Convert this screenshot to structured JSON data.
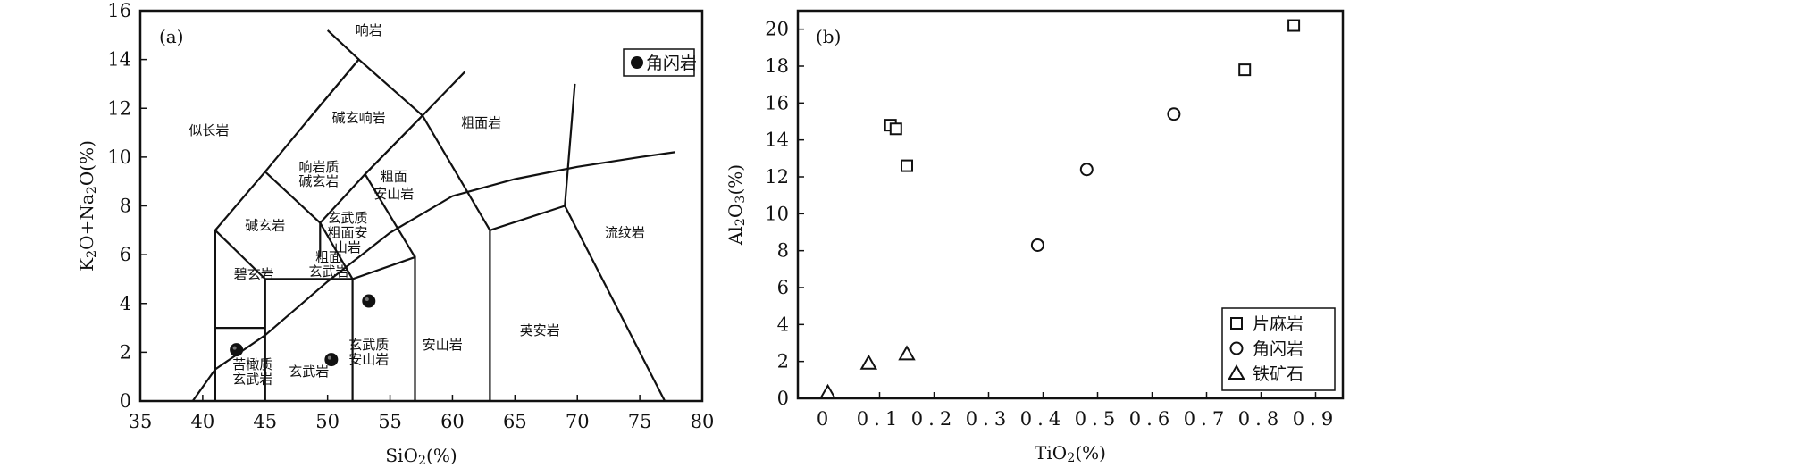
{
  "chart_data": [
    {
      "type": "scatter",
      "panel_label": "(a)",
      "xlabel": "SiO₂(%)",
      "ylabel": "K₂O+Na₂O(%)",
      "xlim": [
        35,
        80
      ],
      "ylim": [
        0,
        16
      ],
      "x_ticks": [
        "35",
        "40",
        "45",
        "50",
        "55",
        "60",
        "65",
        "70",
        "75",
        "80"
      ],
      "y_ticks": [
        "0",
        "2",
        "4",
        "6",
        "8",
        "10",
        "12",
        "14",
        "16"
      ],
      "legend": {
        "placement": "top-right",
        "entries": [
          "角闪岩"
        ]
      },
      "series": [
        {
          "name": "角闪岩",
          "marker": "filled-circle",
          "points": [
            {
              "x": 42.7,
              "y": 2.1
            },
            {
              "x": 50.3,
              "y": 1.7
            },
            {
              "x": 53.3,
              "y": 4.1
            }
          ]
        }
      ],
      "field_labels": [
        {
          "text": "响岩"
        },
        {
          "text": "似长岩"
        },
        {
          "text": "碱玄响岩"
        },
        {
          "text": "粗面岩"
        },
        {
          "text": "响岩质"
        },
        {
          "text": "碱玄岩"
        },
        {
          "text": "粗面"
        },
        {
          "text": "安山岩"
        },
        {
          "text": "碱玄岩"
        },
        {
          "text": "玄武质"
        },
        {
          "text": "粗面安"
        },
        {
          "text": "山岩"
        },
        {
          "text": "流纹岩"
        },
        {
          "text": "碧玄岩"
        },
        {
          "text": "粗面"
        },
        {
          "text": "玄武岩"
        },
        {
          "text": "英安岩"
        },
        {
          "text": "安山岩"
        },
        {
          "text": "玄武质"
        },
        {
          "text": "安山岩"
        },
        {
          "text": "玄武岩"
        },
        {
          "text": "苦橄质"
        },
        {
          "text": "玄武岩"
        }
      ]
    },
    {
      "type": "scatter",
      "panel_label": "(b)",
      "xlabel": "TiO₂(%)",
      "ylabel": "Al₂O₃(%)",
      "xlim": [
        -0.05,
        0.95
      ],
      "ylim": [
        0,
        21
      ],
      "x_ticks": [
        "0",
        "0.1",
        "0.2",
        "0.3",
        "0.4",
        "0.5",
        "0.6",
        "0.7",
        "0.8",
        "0.9"
      ],
      "y_ticks": [
        "0",
        "2",
        "4",
        "6",
        "8",
        "10",
        "12",
        "14",
        "16",
        "18",
        "20"
      ],
      "legend": {
        "placement": "bottom-right",
        "entries": [
          "片麻岩",
          "角闪岩",
          "铁矿石"
        ]
      },
      "series": [
        {
          "name": "片麻岩",
          "marker": "square",
          "points": [
            {
              "x": 0.12,
              "y": 14.8
            },
            {
              "x": 0.13,
              "y": 14.6
            },
            {
              "x": 0.15,
              "y": 12.6
            },
            {
              "x": 0.77,
              "y": 17.8
            },
            {
              "x": 0.86,
              "y": 20.2
            }
          ]
        },
        {
          "name": "角闪岩",
          "marker": "circle",
          "points": [
            {
              "x": 0.39,
              "y": 8.3
            },
            {
              "x": 0.48,
              "y": 12.4
            },
            {
              "x": 0.64,
              "y": 15.4
            }
          ]
        },
        {
          "name": "铁矿石",
          "marker": "triangle",
          "points": [
            {
              "x": 0.005,
              "y": 0.3
            },
            {
              "x": 0.08,
              "y": 1.9
            },
            {
              "x": 0.15,
              "y": 2.4
            }
          ]
        }
      ]
    }
  ]
}
